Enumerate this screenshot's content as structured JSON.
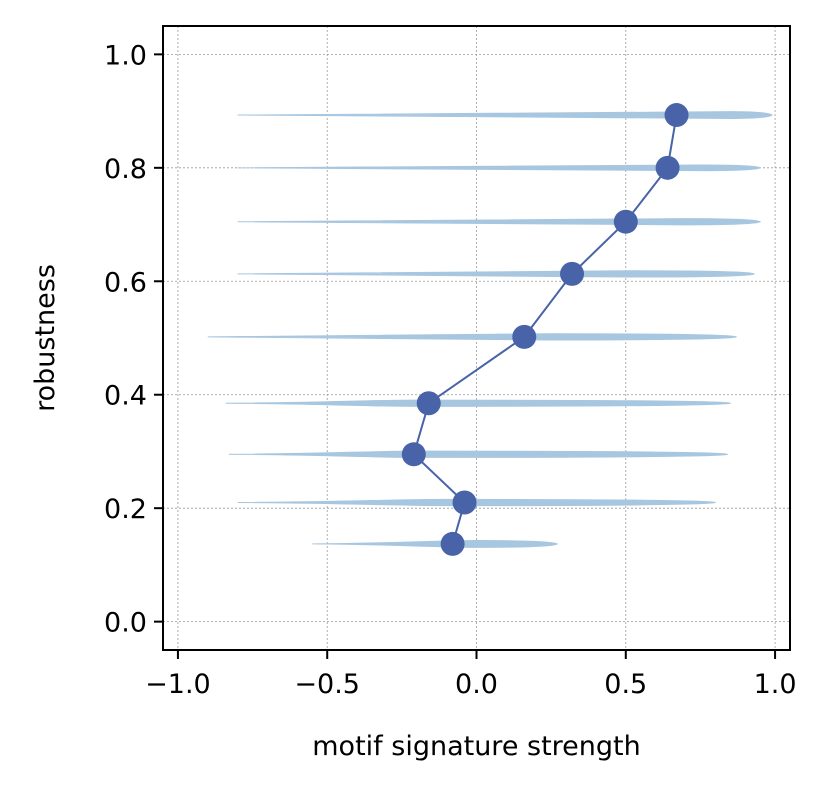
{
  "chart_data": {
    "type": "scatter",
    "subtype": "horizontal-violin-with-mean-line",
    "title": "",
    "xlabel": "motif signature strength",
    "ylabel": "robustness",
    "xlim": [
      -1.05,
      1.05
    ],
    "ylim": [
      -0.05,
      1.05
    ],
    "xticks": [
      -1.0,
      -0.5,
      0.0,
      0.5,
      1.0
    ],
    "xtick_labels": [
      "−1.0",
      "−0.5",
      "0.0",
      "0.5",
      "1.0"
    ],
    "yticks": [
      0.0,
      0.2,
      0.4,
      0.6,
      0.8,
      1.0
    ],
    "ytick_labels": [
      "0.0",
      "0.2",
      "0.4",
      "0.6",
      "0.8",
      "1.0"
    ],
    "grid": true,
    "colors": {
      "violin": "#a7c6e0",
      "line": "#4863a8",
      "marker": "#4863a8",
      "grid": "#9a9a9a"
    },
    "series": [
      {
        "values": [
          {
            "x": -0.08,
            "y": 0.137
          },
          {
            "x": -0.04,
            "y": 0.21
          },
          {
            "x": -0.21,
            "y": 0.295
          },
          {
            "x": -0.16,
            "y": 0.385
          },
          {
            "x": 0.16,
            "y": 0.502
          },
          {
            "x": 0.32,
            "y": 0.613
          },
          {
            "x": 0.5,
            "y": 0.705
          },
          {
            "x": 0.64,
            "y": 0.8
          },
          {
            "x": 0.67,
            "y": 0.893
          }
        ]
      }
    ],
    "violins": [
      {
        "y": 0.137,
        "xmin": -0.55,
        "xmax": 0.27,
        "peak": 0.0,
        "width": 0.012
      },
      {
        "y": 0.21,
        "xmin": -0.8,
        "xmax": 0.8,
        "peak": -0.1,
        "width": 0.011
      },
      {
        "y": 0.295,
        "xmin": -0.83,
        "xmax": 0.84,
        "peak": -0.2,
        "width": 0.011
      },
      {
        "y": 0.385,
        "xmin": -0.84,
        "xmax": 0.85,
        "peak": -0.2,
        "width": 0.011
      },
      {
        "y": 0.502,
        "xmin": -0.9,
        "xmax": 0.87,
        "peak": 0.25,
        "width": 0.011
      },
      {
        "y": 0.613,
        "xmin": -0.8,
        "xmax": 0.93,
        "peak": 0.5,
        "width": 0.011
      },
      {
        "y": 0.705,
        "xmin": -0.8,
        "xmax": 0.95,
        "peak": 0.7,
        "width": 0.011
      },
      {
        "y": 0.8,
        "xmin": -0.8,
        "xmax": 0.95,
        "peak": 0.75,
        "width": 0.01
      },
      {
        "y": 0.893,
        "xmin": -0.8,
        "xmax": 0.99,
        "peak": 0.85,
        "width": 0.012
      }
    ]
  }
}
